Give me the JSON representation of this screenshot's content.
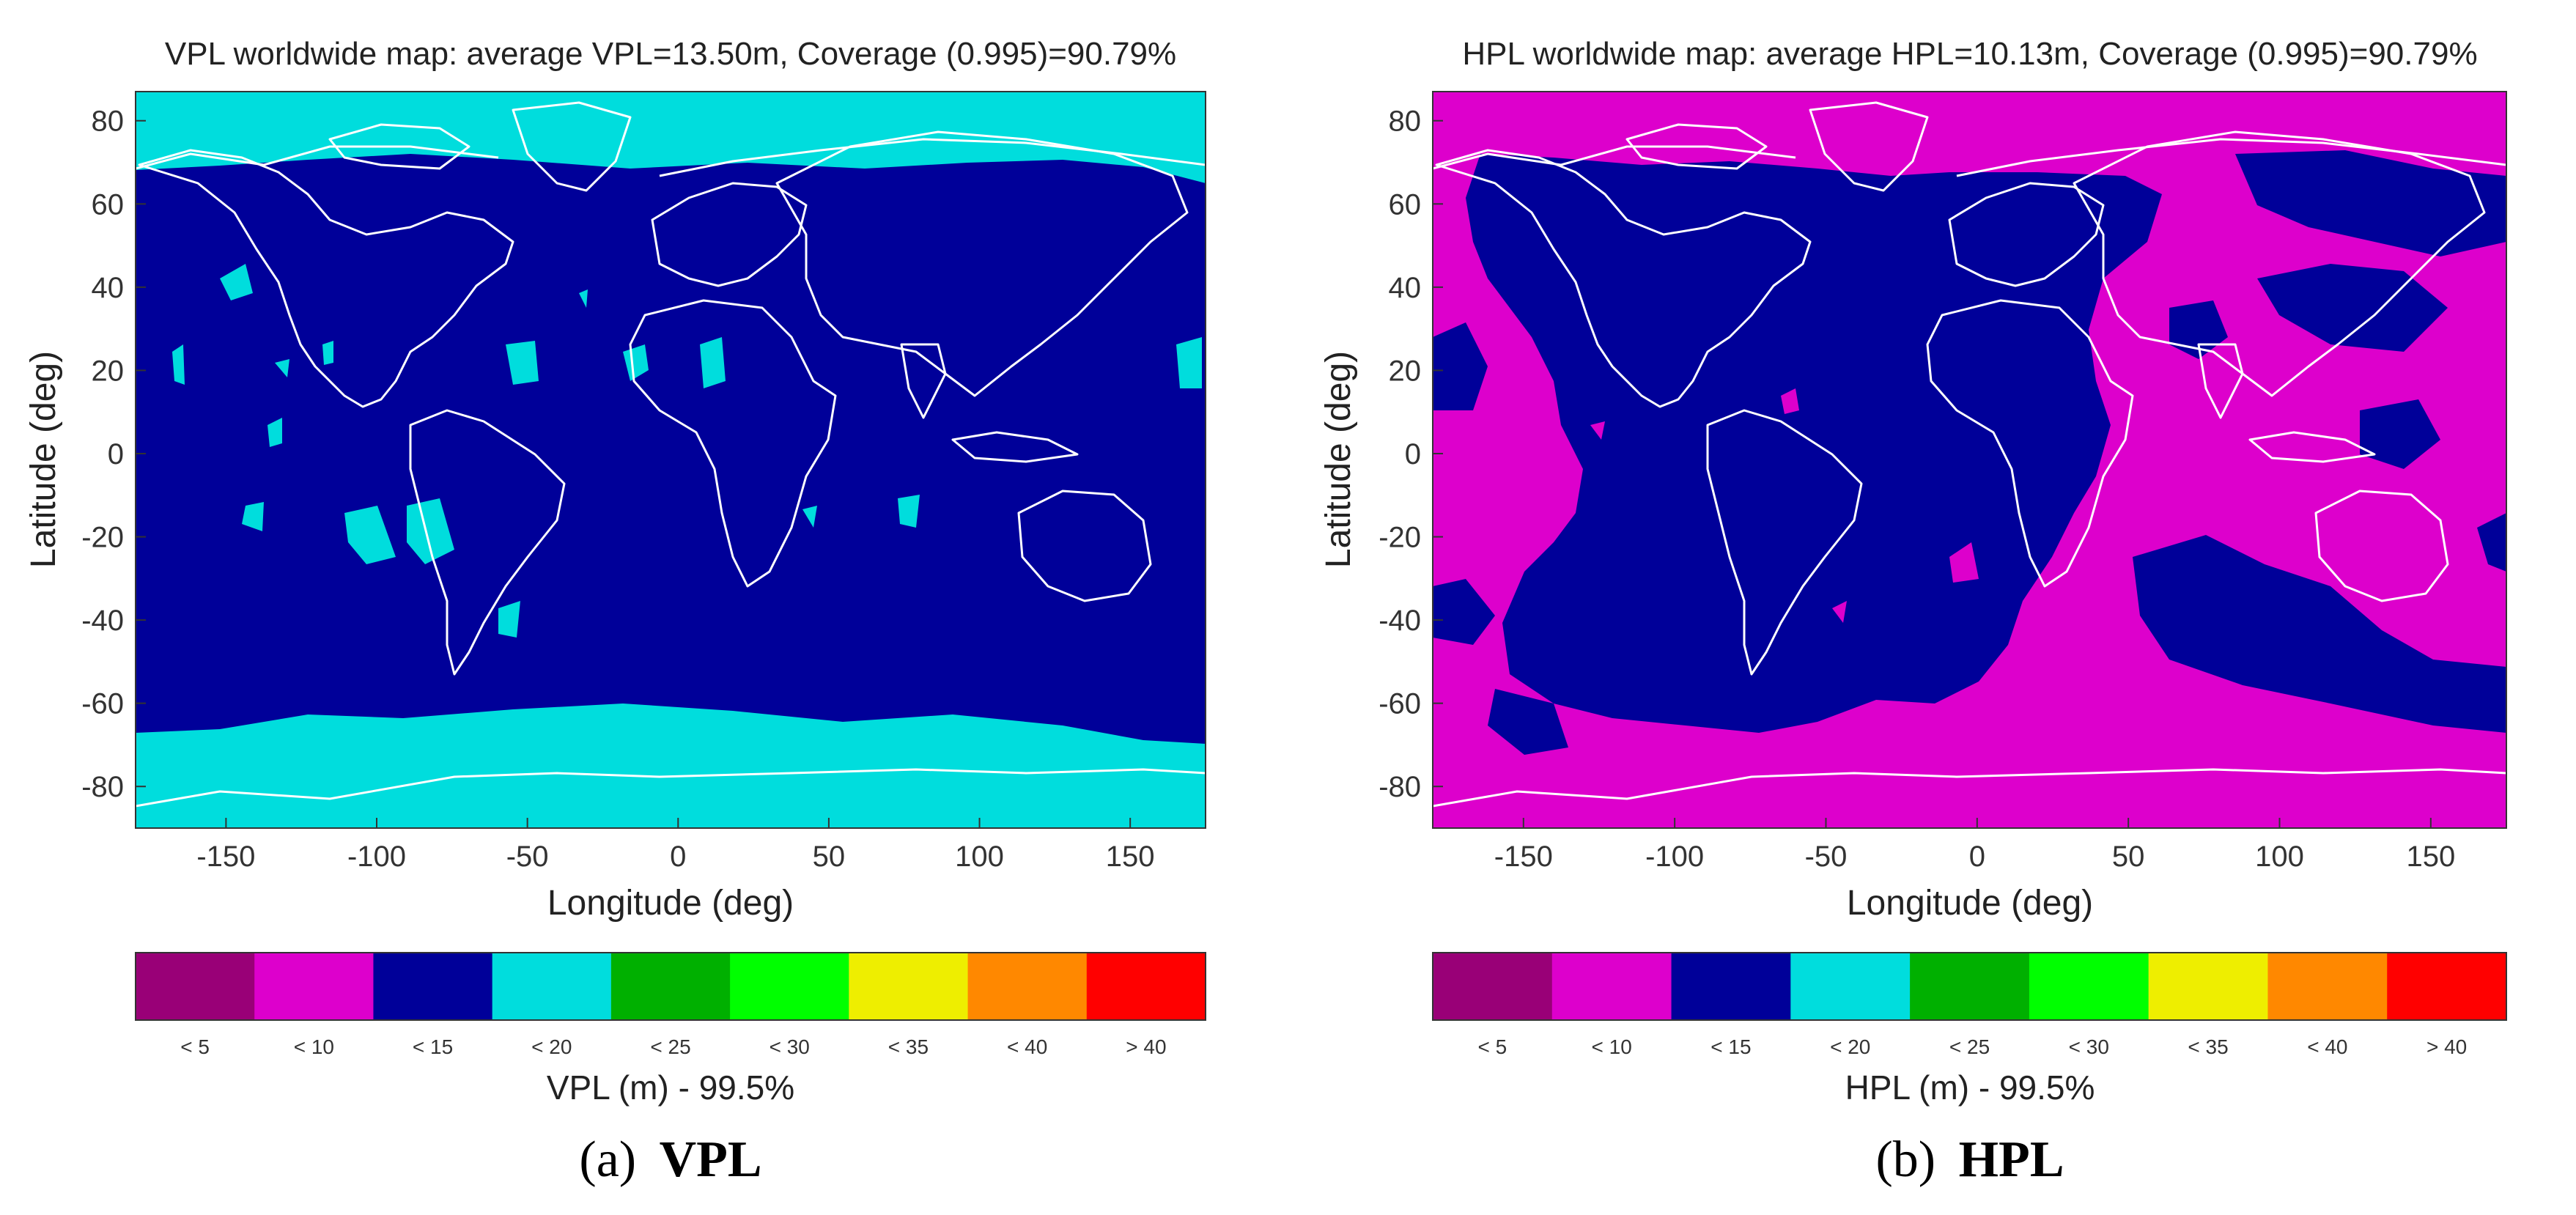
{
  "figure": {
    "panels": [
      {
        "id": "a",
        "title": "VPL worldwide map: average VPL=13.50m, Coverage (0.995)=90.79%",
        "xlabel": "Longitude (deg)",
        "ylabel": "Latitude (deg)",
        "xticks": [
          -150,
          -100,
          -50,
          0,
          50,
          100,
          150
        ],
        "yticks": [
          80,
          60,
          40,
          20,
          0,
          -20,
          -40,
          -60,
          -80
        ],
        "xlim": [
          -180,
          175
        ],
        "ylim": [
          -90,
          87
        ],
        "background_class": "< 15",
        "background_color": "#000099",
        "regions": [
          {
            "name": "arctic-band",
            "class": "< 20",
            "color": "#00dddd"
          },
          {
            "name": "antarctic-band",
            "class": "< 20",
            "color": "#00dddd"
          },
          {
            "name": "scattered-patches",
            "class": "< 20",
            "color": "#00dddd"
          }
        ],
        "colorbar_label": "VPL (m) - 99.5%",
        "caption_letter": "(a)",
        "caption_text": "VPL"
      },
      {
        "id": "b",
        "title": "HPL worldwide map: average HPL=10.13m, Coverage (0.995)=90.79%",
        "xlabel": "Longitude (deg)",
        "ylabel": "Latitude (deg)",
        "xticks": [
          -150,
          -100,
          -50,
          0,
          50,
          100,
          150
        ],
        "yticks": [
          80,
          60,
          40,
          20,
          0,
          -20,
          -40,
          -60,
          -80
        ],
        "xlim": [
          -180,
          175
        ],
        "ylim": [
          -90,
          87
        ],
        "background_class": "< 10",
        "background_color": "#dd00cc",
        "regions": [
          {
            "name": "atlantic-americas-zone",
            "class": "< 15",
            "color": "#000099"
          },
          {
            "name": "pacific-patches",
            "class": "< 15",
            "color": "#000099"
          }
        ],
        "colorbar_label": "HPL (m) - 99.5%",
        "caption_letter": "(b)",
        "caption_text": "HPL"
      }
    ],
    "colorbar": {
      "labels": [
        "< 5",
        "< 10",
        "< 15",
        "< 20",
        "< 25",
        "< 30",
        "< 35",
        "< 40",
        "> 40"
      ],
      "colors": [
        "#990077",
        "#dd00cc",
        "#000099",
        "#00dddd",
        "#00b000",
        "#00ff00",
        "#eeee00",
        "#ff8800",
        "#ff0000"
      ]
    }
  }
}
